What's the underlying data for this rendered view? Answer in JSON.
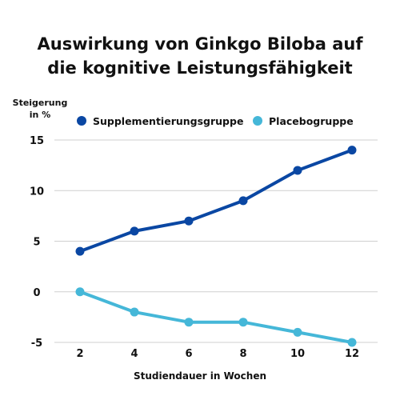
{
  "chart_data": {
    "type": "line",
    "title": [
      "Auswirkung von Ginkgo Biloba auf",
      "die kognitive Leistungsfähigkeit"
    ],
    "ylabel": [
      "Steigerung",
      "in %"
    ],
    "xlabel": "Studiendauer in Wochen",
    "x": [
      2,
      4,
      6,
      8,
      10,
      12
    ],
    "yticks": [
      15,
      10,
      5,
      0,
      -5
    ],
    "ylim": [
      -5,
      15
    ],
    "grid": true,
    "legend_position": "top",
    "series": [
      {
        "name": "Supplementierungsgruppe",
        "color": "#0a47a3",
        "values": [
          4,
          6,
          7,
          9,
          12,
          14
        ]
      },
      {
        "name": "Placebogruppe",
        "color": "#45b7d8",
        "values": [
          0,
          -2,
          -3,
          -3,
          -4,
          -5
        ]
      }
    ]
  }
}
